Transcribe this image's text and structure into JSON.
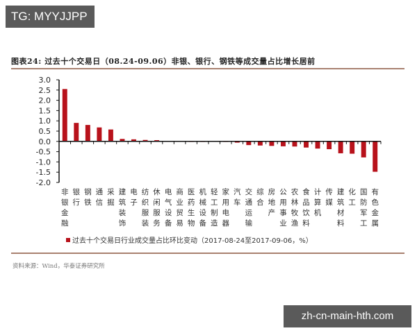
{
  "watermarks": {
    "top_left": "TG: MYYJJPP",
    "bottom_right": "zh-cn-main-hth.com"
  },
  "figure": {
    "title": "图表24:  过去十个交易日（08.24-09.06）非银、银行、钢铁等成交量占比增长居前",
    "source": "资料来源：Wind，华泰证券研究所",
    "bar_color": "#b8121b"
  },
  "chart_data": {
    "type": "bar",
    "title": "过去十个交易日（08.24-09.06）非银、银行、钢铁等成交量占比增长居前",
    "xlabel": "",
    "ylabel": "",
    "ylim": [
      -2.0,
      3.0
    ],
    "yticks": [
      "3.0",
      "2.5",
      "2.0",
      "1.5",
      "1.0",
      "0.5",
      "0.0",
      "-0.5",
      "-1.0",
      "-1.5",
      "-2.0"
    ],
    "grid": false,
    "legend_position": "bottom",
    "categories": [
      "非银金融",
      "银行",
      "钢铁",
      "通信",
      "采掘",
      "建筑装饰",
      "电子",
      "纺织服装",
      "休闲服务",
      "电气设备",
      "商业贸易",
      "医药生物",
      "机械设备",
      "轻工制造",
      "家用电器",
      "汽车",
      "交通运输",
      "综合",
      "房地产",
      "公用事业",
      "农林牧渔",
      "食品饮料",
      "计算机",
      "传媒",
      "建筑材料",
      "化工",
      "国防军工",
      "有色金属"
    ],
    "series": [
      {
        "name": "过去十个交易日行业成交量占比环比变动（2017-08-24至2017-09-06，%）",
        "values": [
          2.55,
          0.9,
          0.8,
          0.68,
          0.58,
          0.12,
          0.1,
          0.07,
          0.06,
          0.02,
          0.01,
          0.0,
          0.0,
          0.01,
          -0.02,
          -0.06,
          -0.18,
          -0.2,
          -0.22,
          -0.24,
          -0.25,
          -0.3,
          -0.35,
          -0.38,
          -0.58,
          -0.6,
          -0.78,
          -1.48
        ]
      }
    ]
  }
}
